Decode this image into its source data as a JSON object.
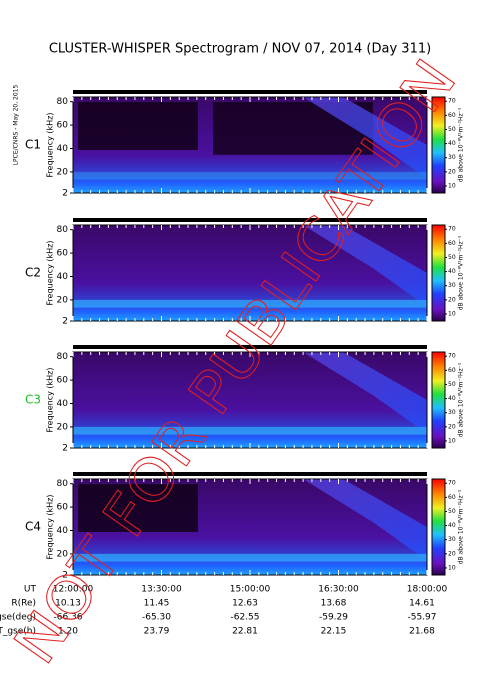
{
  "title": "CLUSTER-WHISPER Spectrogram / NOV 07, 2014 (Day 311)",
  "credit": "LPCE/CNRS - May 20, 2015",
  "watermark": "NOT FOR PUBLICATION",
  "ylabel": "Frequency (kHz)",
  "ylim": [
    2,
    84
  ],
  "yticks": [
    2,
    20,
    40,
    60,
    80
  ],
  "colorbar": {
    "lim": [
      5,
      73
    ],
    "ticks": [
      10,
      20,
      30,
      40,
      50,
      60,
      70
    ],
    "label": "dB above 10⁻⁸V²m⁻²Hz⁻¹"
  },
  "panels": [
    {
      "label": "C1",
      "label_color": "#000000"
    },
    {
      "label": "C2",
      "label_color": "#000000"
    },
    {
      "label": "C3",
      "label_color": "#20c020"
    },
    {
      "label": "C4",
      "label_color": "#000000"
    }
  ],
  "ephemeris": [
    {
      "name": "UT",
      "values": [
        "12:00:00",
        "13:30:00",
        "15:00:00",
        "16:30:00",
        "18:00:00"
      ]
    },
    {
      "name": "R(Re)",
      "values": [
        "10.13",
        "11.45",
        "12.63",
        "13.68",
        "14.61"
      ]
    },
    {
      "name": "Lat_gse(deg)",
      "values": [
        "-66.36",
        "-65.30",
        "-62.55",
        "-59.29",
        "-55.97"
      ]
    },
    {
      "name": "LT_gse(h)",
      "values": [
        "1.20",
        "23.79",
        "22.81",
        "22.15",
        "21.68"
      ]
    }
  ]
}
